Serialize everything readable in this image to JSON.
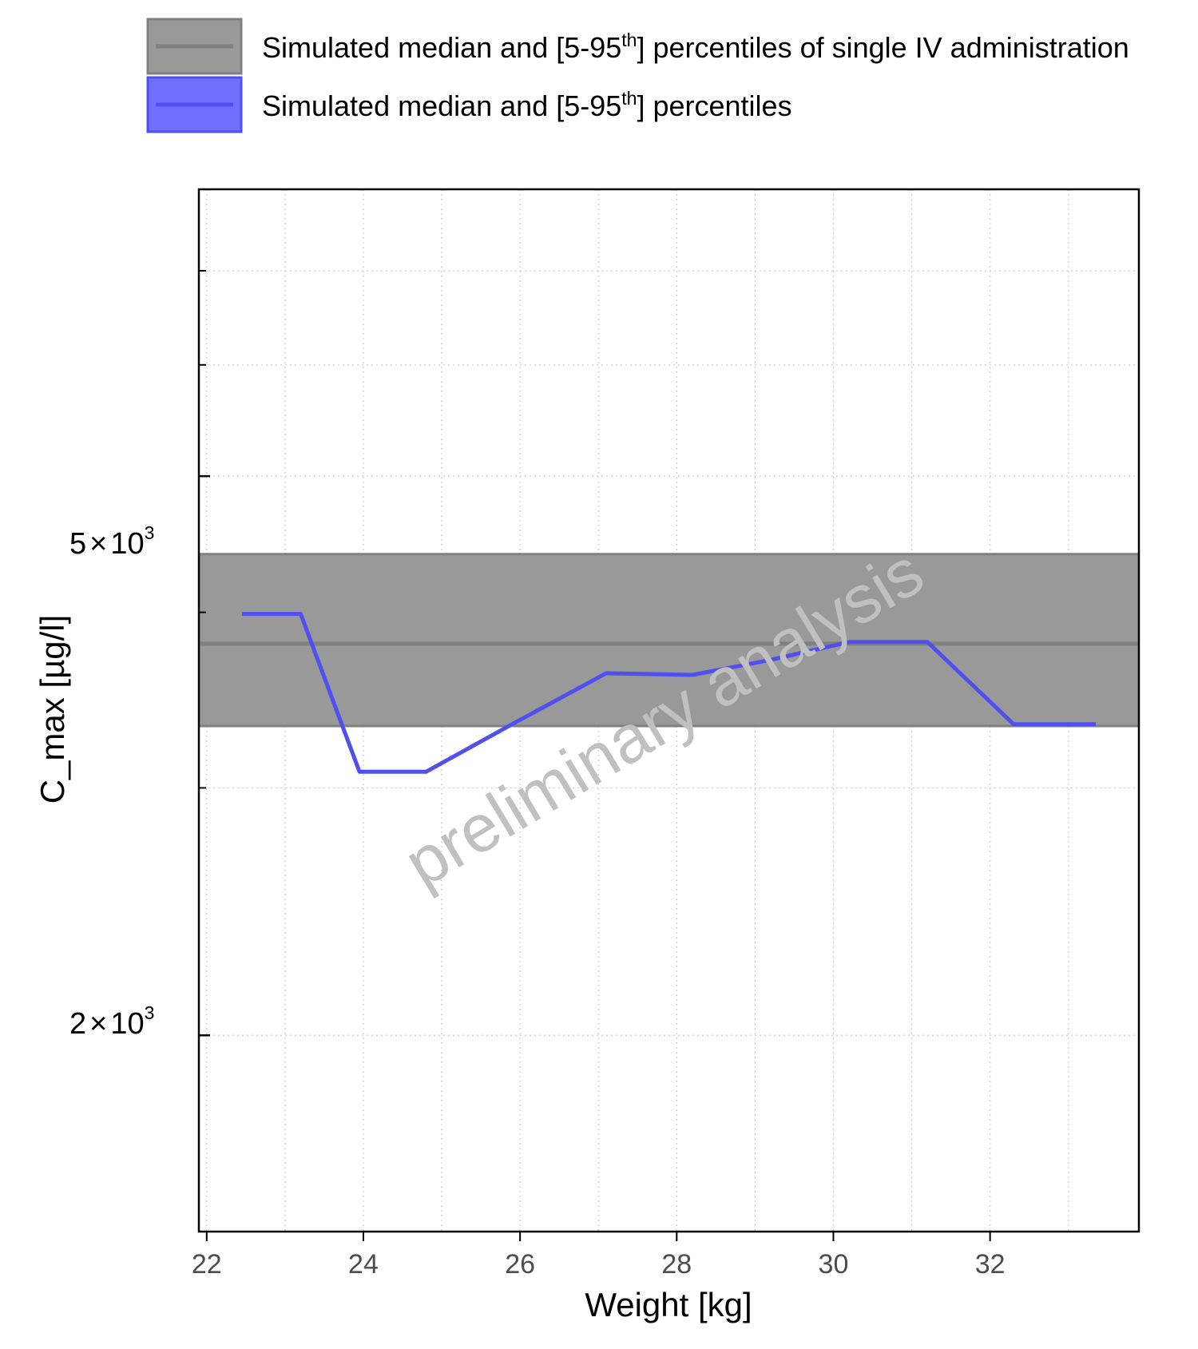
{
  "chart_data": {
    "type": "line",
    "xlabel": "Weight [kg]",
    "ylabel": "C_max [µg/l]",
    "y_scale": "log",
    "xlim": [
      21.9,
      33.9
    ],
    "ylim": [
      1450,
      8000
    ],
    "x_ticks": [
      22,
      24,
      26,
      28,
      30,
      32
    ],
    "y_ticks": [
      {
        "value": 2000,
        "label_mantissa": "2",
        "label_sep": "×",
        "label_base": "10",
        "label_exp": "3"
      },
      {
        "value": 5000,
        "label_mantissa": "5",
        "label_sep": "×",
        "label_base": "10",
        "label_exp": "3"
      }
    ],
    "y_minor_ticks": [
      3000,
      4000,
      6000,
      7000
    ],
    "grid": true,
    "legend_position": "top",
    "legend": [
      {
        "name_main": "Simulated median and [5-95",
        "name_sup": "th",
        "name_end": "] percentiles of single IV administration",
        "color": "#808080",
        "fill": "#999999"
      },
      {
        "name_main": "Simulated median and [5-95",
        "name_sup": "th",
        "name_end": "] percentiles",
        "color": "#5050f0",
        "fill": "#7070ff"
      }
    ],
    "series": [
      {
        "name": "Simulated median and [5-95th] percentiles of single IV administration",
        "kind": "band",
        "color": "#808080",
        "fill": "#999999",
        "median": 3800,
        "p5": 3320,
        "p95": 4400
      },
      {
        "name": "Simulated median and [5-95th] percentiles",
        "kind": "line",
        "color": "#5050f0",
        "x": [
          22.45,
          23.2,
          23.95,
          24.8,
          25.9,
          27.1,
          28.2,
          29.2,
          30.2,
          31.2,
          32.3,
          33.35
        ],
        "values": [
          3990,
          3990,
          3080,
          3080,
          3330,
          3620,
          3610,
          3700,
          3810,
          3810,
          3330,
          3330
        ]
      }
    ],
    "watermark": "preliminary analysis"
  }
}
